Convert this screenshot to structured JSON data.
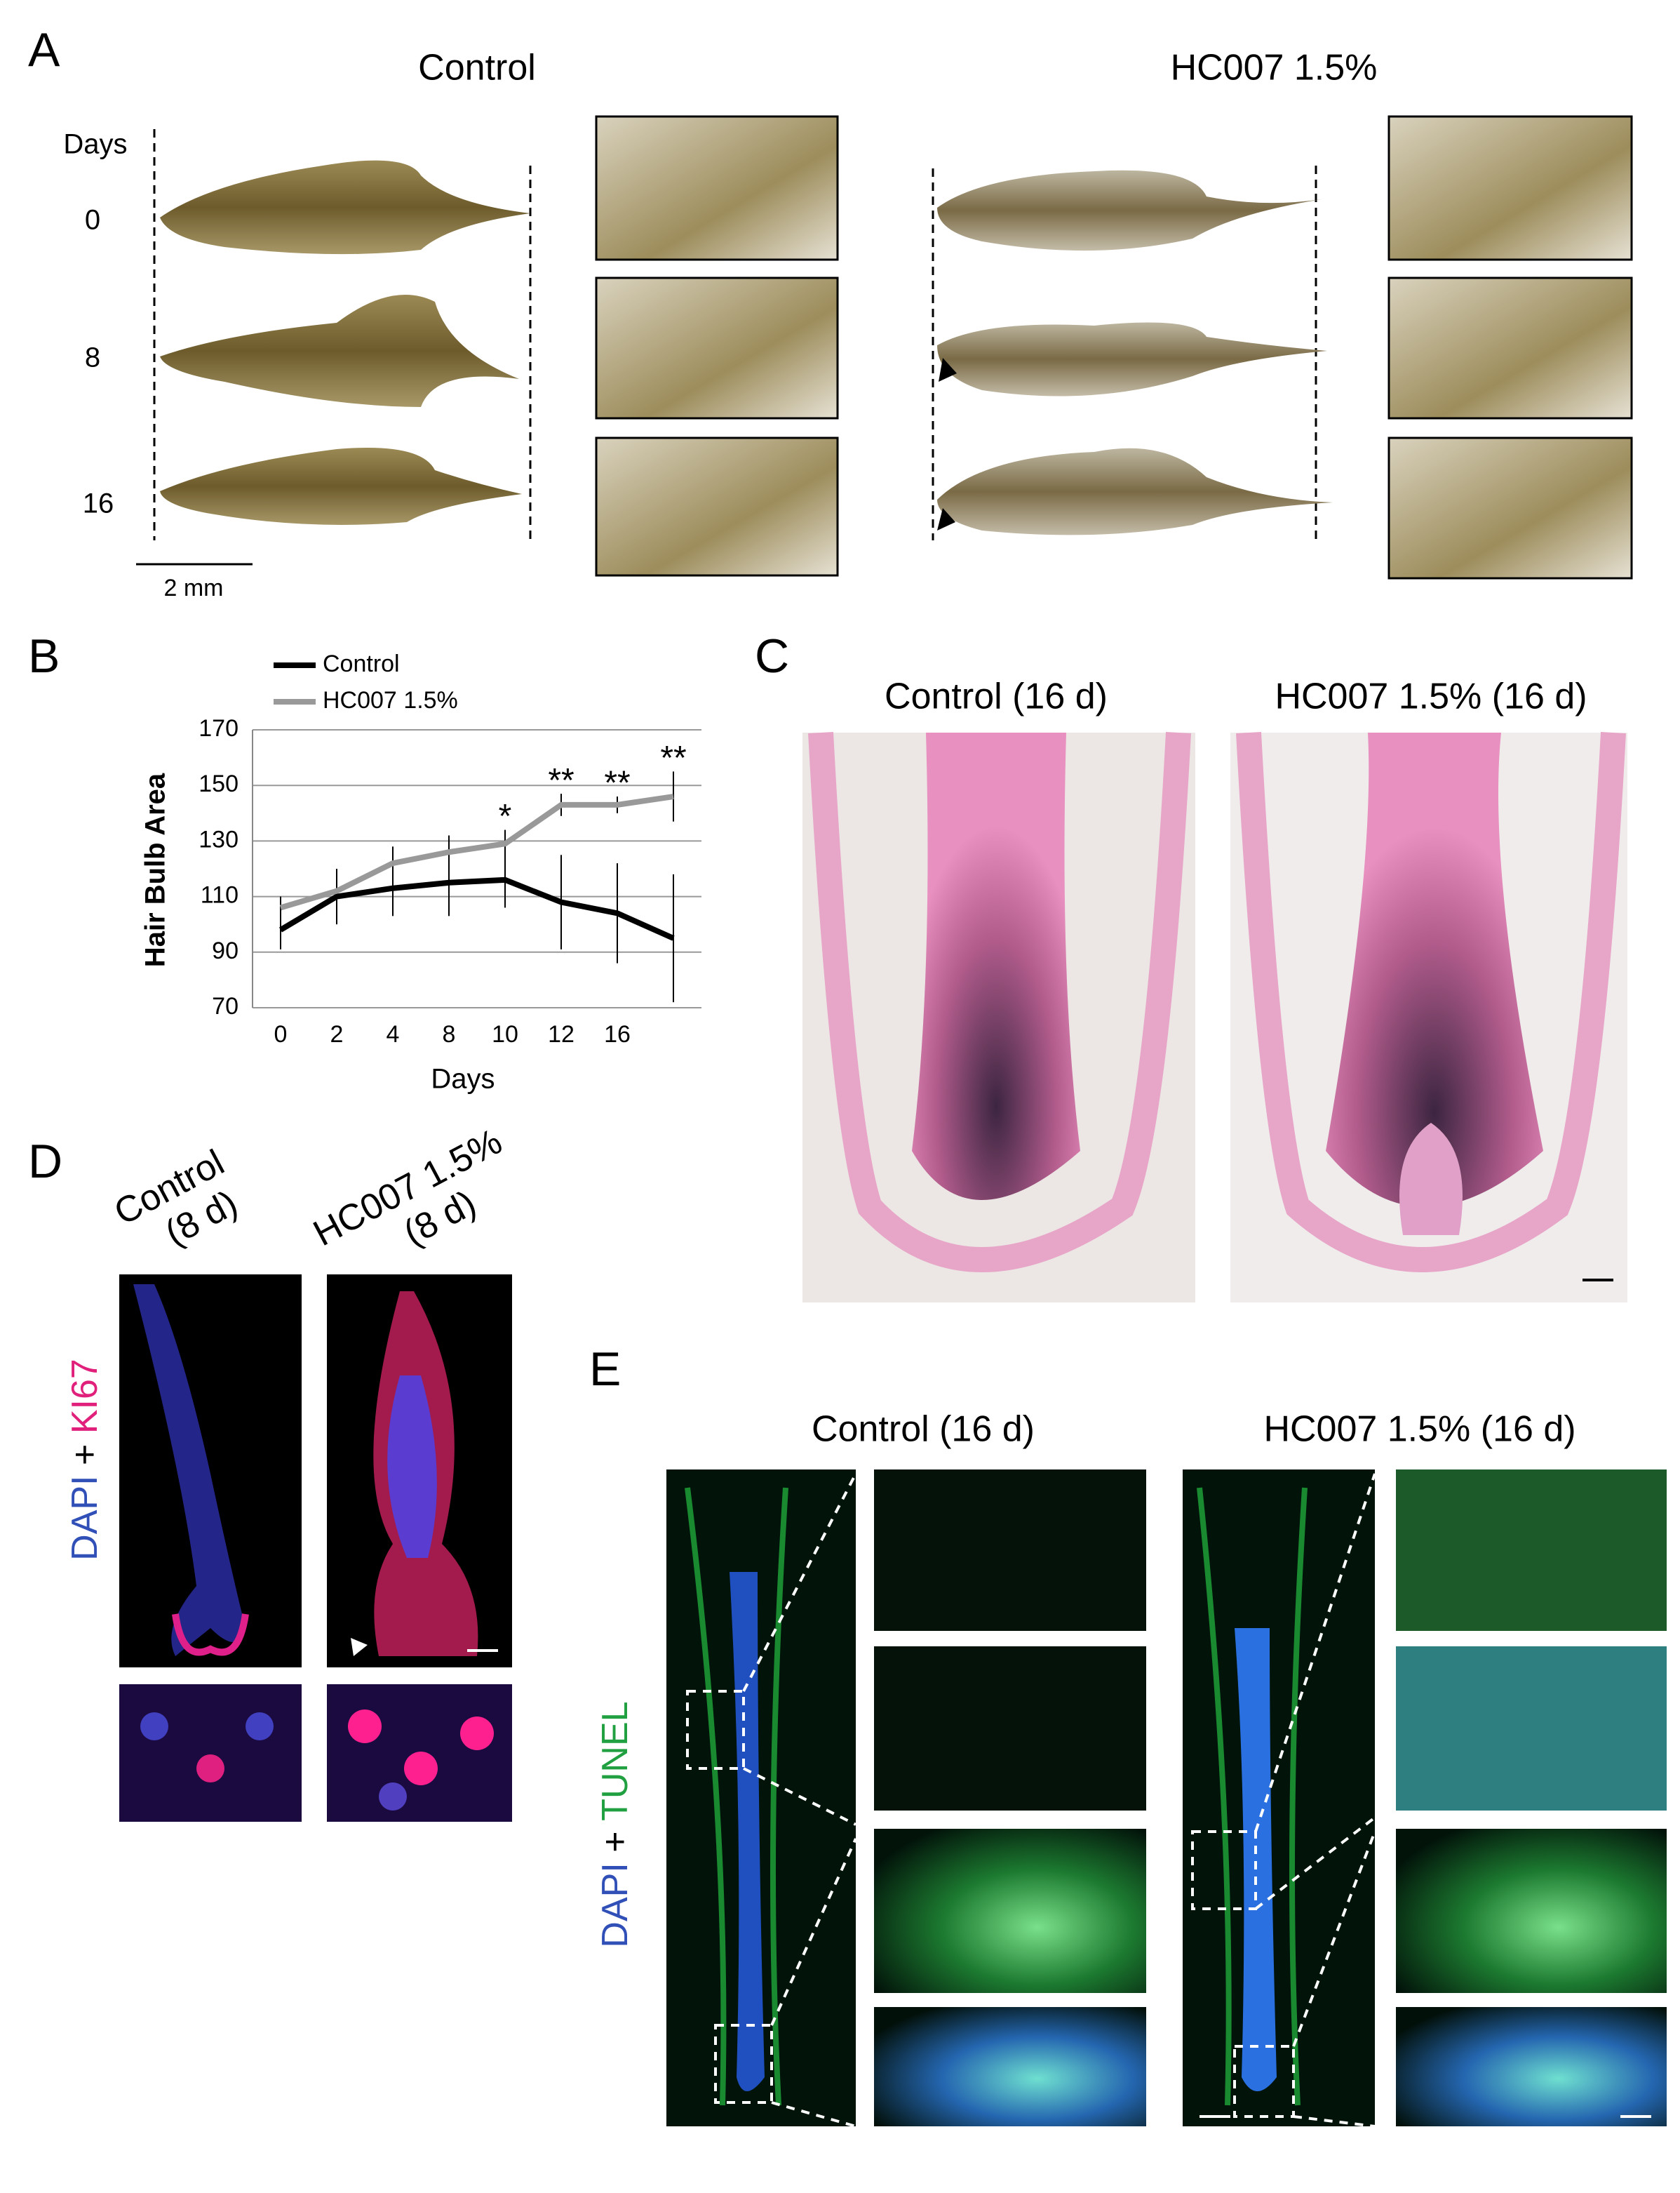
{
  "panel_a": {
    "label": "A",
    "columns": [
      "Control",
      "HC007 1.5%"
    ],
    "row_header": "Days",
    "rows": [
      "0",
      "8",
      "16"
    ],
    "scale_bar": "2 mm"
  },
  "chart_data": {
    "type": "line",
    "label": "B",
    "ylabel": "Hair Bulb Area",
    "xlabel": "Days",
    "categories": [
      "0",
      "2",
      "4",
      "8",
      "10",
      "12",
      "16",
      null
    ],
    "series": [
      {
        "name": "Control",
        "color": "#000000",
        "values": [
          98,
          110,
          113,
          115,
          116,
          108,
          104,
          95
        ],
        "errors": [
          7,
          10,
          10,
          12,
          10,
          17,
          18,
          23
        ]
      },
      {
        "name": "HC007 1.5%",
        "color": "#999999",
        "values": [
          106,
          112,
          122,
          126,
          129,
          143,
          143,
          146
        ],
        "errors": [
          4,
          6,
          6,
          6,
          5,
          4,
          3,
          9
        ]
      }
    ],
    "significance": [
      null,
      null,
      null,
      null,
      "*",
      "**",
      "**",
      "**"
    ],
    "ylim": [
      70,
      170
    ],
    "yticks": [
      70,
      90,
      110,
      130,
      150,
      170
    ],
    "grid": true
  },
  "panel_c": {
    "label": "C",
    "titles": [
      "Control (16 d)",
      "HC007 1.5% (16 d)"
    ]
  },
  "panel_d": {
    "label": "D",
    "titles": [
      [
        "Control",
        "(8 d)"
      ],
      [
        "HC007 1.5%",
        "(8 d)"
      ]
    ],
    "stain": [
      "DAPI",
      "+",
      "KI67"
    ]
  },
  "panel_e": {
    "label": "E",
    "titles": [
      "Control (16 d)",
      "HC007 1.5% (16 d)"
    ],
    "stain": [
      "DAPI",
      "+",
      "TUNEL"
    ]
  }
}
